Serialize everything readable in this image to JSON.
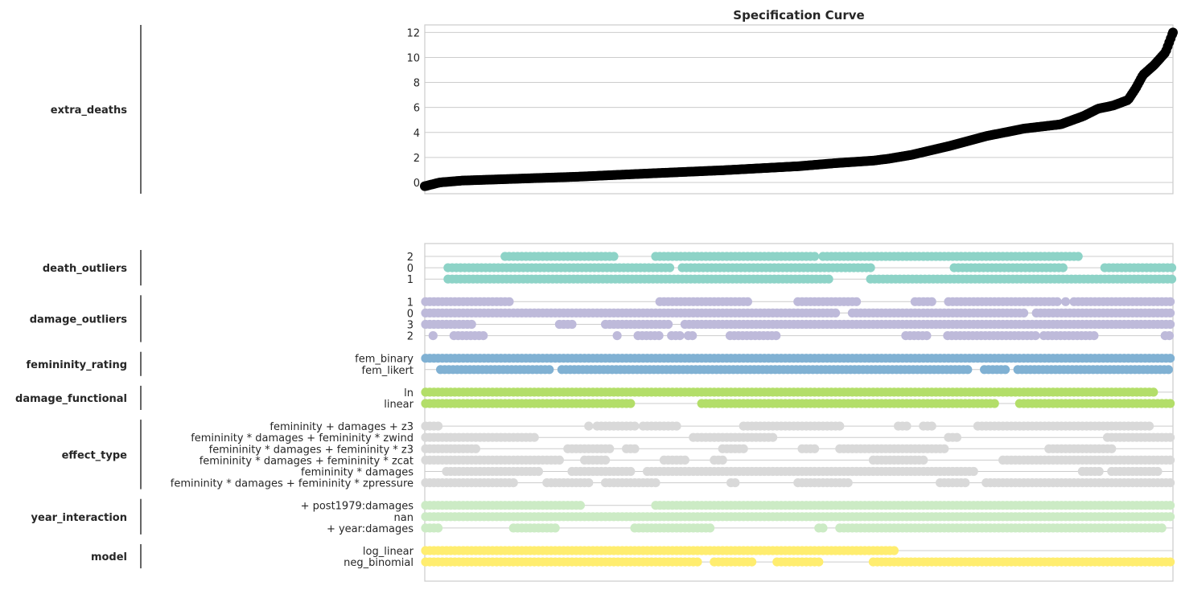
{
  "chart_data": {
    "title": "Specification Curve",
    "type": "scatter",
    "curve": {
      "ylabel": "extra_deaths",
      "ylim": [
        -0.9,
        12.6
      ],
      "yticks": [
        0,
        2,
        4,
        6,
        8,
        10,
        12
      ],
      "n_specifications": 1000,
      "color": "#000000",
      "quantiles": [
        [
          0.0,
          -0.3
        ],
        [
          0.02,
          0.0
        ],
        [
          0.05,
          0.15
        ],
        [
          0.1,
          0.25
        ],
        [
          0.2,
          0.45
        ],
        [
          0.3,
          0.72
        ],
        [
          0.4,
          0.98
        ],
        [
          0.5,
          1.3
        ],
        [
          0.55,
          1.55
        ],
        [
          0.6,
          1.75
        ],
        [
          0.62,
          1.9
        ],
        [
          0.65,
          2.2
        ],
        [
          0.7,
          2.9
        ],
        [
          0.75,
          3.7
        ],
        [
          0.8,
          4.3
        ],
        [
          0.85,
          4.65
        ],
        [
          0.88,
          5.3
        ],
        [
          0.9,
          5.9
        ],
        [
          0.92,
          6.15
        ],
        [
          0.94,
          6.6
        ],
        [
          0.95,
          7.5
        ],
        [
          0.96,
          8.6
        ],
        [
          0.975,
          9.4
        ],
        [
          0.99,
          10.4
        ],
        [
          1.0,
          12.0
        ]
      ]
    },
    "groups": [
      {
        "name": "death_outliers",
        "color": "#8dd3c7",
        "levels": [
          {
            "label": "2",
            "density": 0.65,
            "start": 0.0,
            "end": 0.9
          },
          {
            "label": "0",
            "density": 0.9,
            "start": 0.03,
            "end": 1.0
          },
          {
            "label": "1",
            "density": 0.9,
            "start": 0.03,
            "end": 1.0
          }
        ]
      },
      {
        "name": "damage_outliers",
        "color": "#bebada",
        "levels": [
          {
            "label": "1",
            "density": 0.75,
            "start": 0.0,
            "end": 1.0
          },
          {
            "label": "0",
            "density": 0.8,
            "start": 0.0,
            "end": 1.0
          },
          {
            "label": "3",
            "density": 0.7,
            "start": 0.0,
            "end": 1.0
          },
          {
            "label": "2",
            "density": 0.68,
            "start": 0.01,
            "end": 1.0
          }
        ]
      },
      {
        "name": "femininity_rating",
        "color": "#80b1d3",
        "levels": [
          {
            "label": "fem_binary",
            "density": 0.93,
            "start": 0.0,
            "end": 1.0
          },
          {
            "label": "fem_likert",
            "density": 0.9,
            "start": 0.02,
            "end": 1.0
          }
        ]
      },
      {
        "name": "damage_functional",
        "color": "#b3de69",
        "levels": [
          {
            "label": "ln",
            "density": 0.9,
            "start": 0.0,
            "end": 0.98
          },
          {
            "label": "linear",
            "density": 0.92,
            "start": 0.0,
            "end": 1.0
          }
        ]
      },
      {
        "name": "effect_type",
        "color": "#d9d9d9",
        "levels": [
          {
            "label": "femininity + damages + z3",
            "density": 0.55,
            "start": 0.0,
            "end": 1.0
          },
          {
            "label": "femininity * damages + femininity * zwind",
            "density": 0.55,
            "start": 0.0,
            "end": 1.0
          },
          {
            "label": "femininity * damages + femininity * z3",
            "density": 0.55,
            "start": 0.0,
            "end": 1.0
          },
          {
            "label": "femininity * damages + femininity * zcat",
            "density": 0.55,
            "start": 0.0,
            "end": 1.0
          },
          {
            "label": "femininity * damages",
            "density": 0.55,
            "start": 0.0,
            "end": 1.0
          },
          {
            "label": "femininity * damages + femininity * zpressure",
            "density": 0.5,
            "start": 0.0,
            "end": 1.0
          }
        ]
      },
      {
        "name": "year_interaction",
        "color": "#ccebc5",
        "levels": [
          {
            "label": "+ post1979:damages",
            "density": 0.98,
            "start": 0.0,
            "end": 1.0
          },
          {
            "label": "nan",
            "density": 0.98,
            "start": 0.0,
            "end": 1.0
          },
          {
            "label": "+ year:damages",
            "density": 0.85,
            "start": 0.0,
            "end": 0.99
          }
        ]
      },
      {
        "name": "model",
        "color": "#ffed6f",
        "levels": [
          {
            "label": "log_linear",
            "density": 1.0,
            "start": 0.0,
            "end": 0.63
          },
          {
            "label": "neg_binomial",
            "density": 0.82,
            "start": 0.0,
            "end": 1.0
          }
        ]
      }
    ]
  }
}
